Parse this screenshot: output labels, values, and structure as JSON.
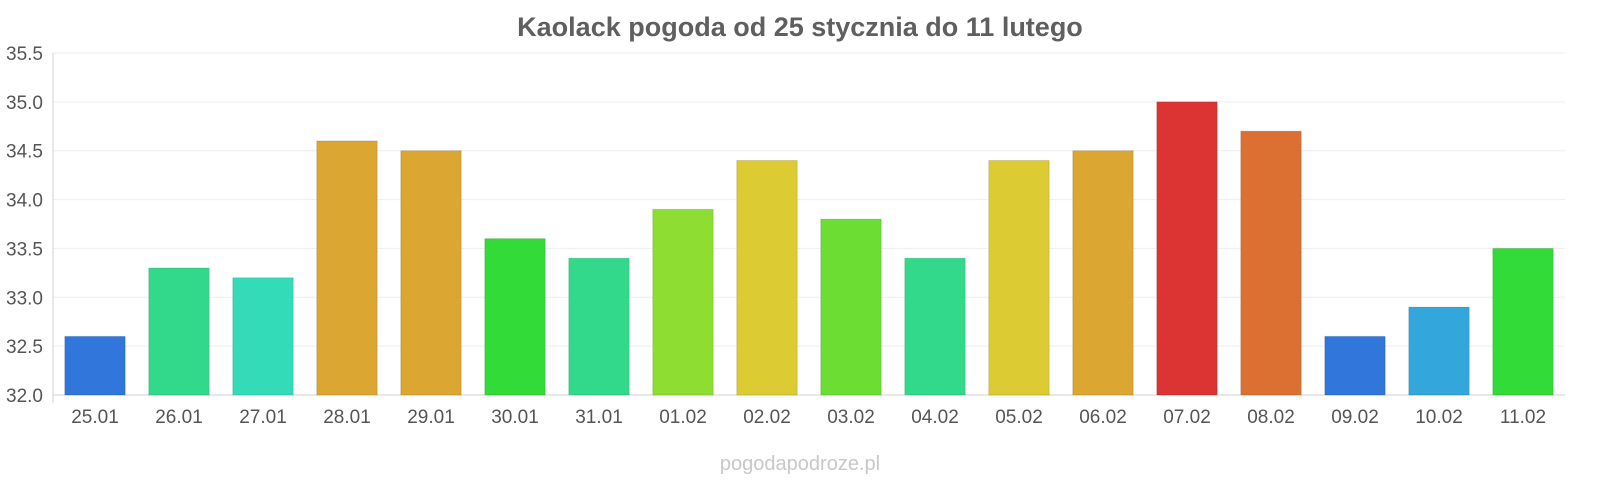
{
  "chart_data": {
    "type": "bar",
    "title": "Kaolack pogoda od 25 stycznia do 11 lutego",
    "xlabel": "",
    "ylabel": "",
    "ylim": [
      32.0,
      35.5
    ],
    "yticks": [
      "32.0",
      "32.5",
      "33.0",
      "33.5",
      "34.0",
      "34.5",
      "35.0",
      "35.5"
    ],
    "grid": true,
    "legend": "none",
    "categories": [
      "25.01",
      "26.01",
      "27.01",
      "28.01",
      "29.01",
      "30.01",
      "31.01",
      "01.02",
      "02.02",
      "03.02",
      "04.02",
      "05.02",
      "06.02",
      "07.02",
      "08.02",
      "09.02",
      "10.02",
      "11.02"
    ],
    "values": [
      32.6,
      33.3,
      33.2,
      34.6,
      34.5,
      33.6,
      33.4,
      33.9,
      34.4,
      33.8,
      33.4,
      34.4,
      34.5,
      35.0,
      34.7,
      32.6,
      32.9,
      33.5
    ],
    "colors": [
      "#3176db",
      "#33d98a",
      "#33dbb9",
      "#dca633",
      "#dca633",
      "#33db38",
      "#33d98a",
      "#8ddd33",
      "#dccb33",
      "#6bdd33",
      "#33d98a",
      "#dccb33",
      "#dca633",
      "#dc3333",
      "#dc7033",
      "#3176db",
      "#33a6dc",
      "#33db38"
    ]
  },
  "watermark": "pogodapodroze.pl"
}
